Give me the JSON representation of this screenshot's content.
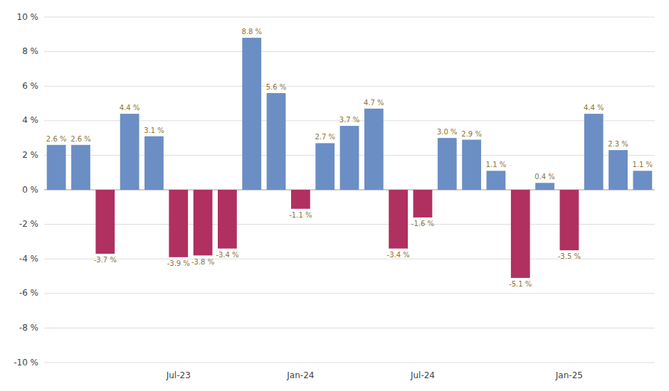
{
  "chart_data": {
    "type": "bar",
    "categories": [
      null,
      null,
      null,
      null,
      null,
      "Jul-23",
      null,
      null,
      null,
      null,
      "Jan-24",
      null,
      null,
      null,
      null,
      "Jul-24",
      null,
      null,
      null,
      null,
      null,
      "Jan-25",
      null,
      null,
      null
    ],
    "values": [
      2.6,
      2.6,
      -3.7,
      4.4,
      3.1,
      -3.9,
      -3.8,
      -3.4,
      8.8,
      5.6,
      -1.1,
      2.7,
      3.7,
      4.7,
      -3.4,
      -1.6,
      3.0,
      2.9,
      1.1,
      -5.1,
      0.4,
      -3.5,
      4.4,
      2.3,
      1.1
    ],
    "value_labels": [
      "2.6 %",
      "2.6 %",
      "-3.7 %",
      "4.4 %",
      "3.1 %",
      "-3.9 %",
      "-3.8 %",
      "-3.4 %",
      "8.8 %",
      "5.6 %",
      "-1.1 %",
      "2.7 %",
      "3.7 %",
      "4.7 %",
      "-3.4 %",
      "-1.6 %",
      "3.0 %",
      "2.9 %",
      "1.1 %",
      "-5.1 %",
      "0.4 %",
      "-3.5 %",
      "4.4 %",
      "2.3 %",
      "1.1 %"
    ],
    "colors": [
      "#6B8EC4",
      "#6B8EC4",
      "#B03060",
      "#6B8EC4",
      "#6B8EC4",
      "#B03060",
      "#B03060",
      "#B03060",
      "#6B8EC4",
      "#6B8EC4",
      "#B03060",
      "#6B8EC4",
      "#6B8EC4",
      "#6B8EC4",
      "#B03060",
      "#B03060",
      "#6B8EC4",
      "#6B8EC4",
      "#6B8EC4",
      "#B03060",
      "#6B8EC4",
      "#B03060",
      "#6B8EC4",
      "#6B8EC4",
      "#6B8EC4"
    ],
    "ylim": [
      -10,
      10
    ],
    "yticks": [
      {
        "value": -10,
        "label": "-10 %"
      },
      {
        "value": -8,
        "label": "-8 %"
      },
      {
        "value": -6,
        "label": "-6 %"
      },
      {
        "value": -4,
        "label": "-4 %"
      },
      {
        "value": -2,
        "label": "-2 %"
      },
      {
        "value": 0,
        "label": "0 %"
      },
      {
        "value": 2,
        "label": "2 %"
      },
      {
        "value": 4,
        "label": "4 %"
      },
      {
        "value": 6,
        "label": "6 %"
      },
      {
        "value": 8,
        "label": "8 %"
      },
      {
        "value": 10,
        "label": "10 %"
      }
    ],
    "grid": true,
    "data_labels": true
  }
}
